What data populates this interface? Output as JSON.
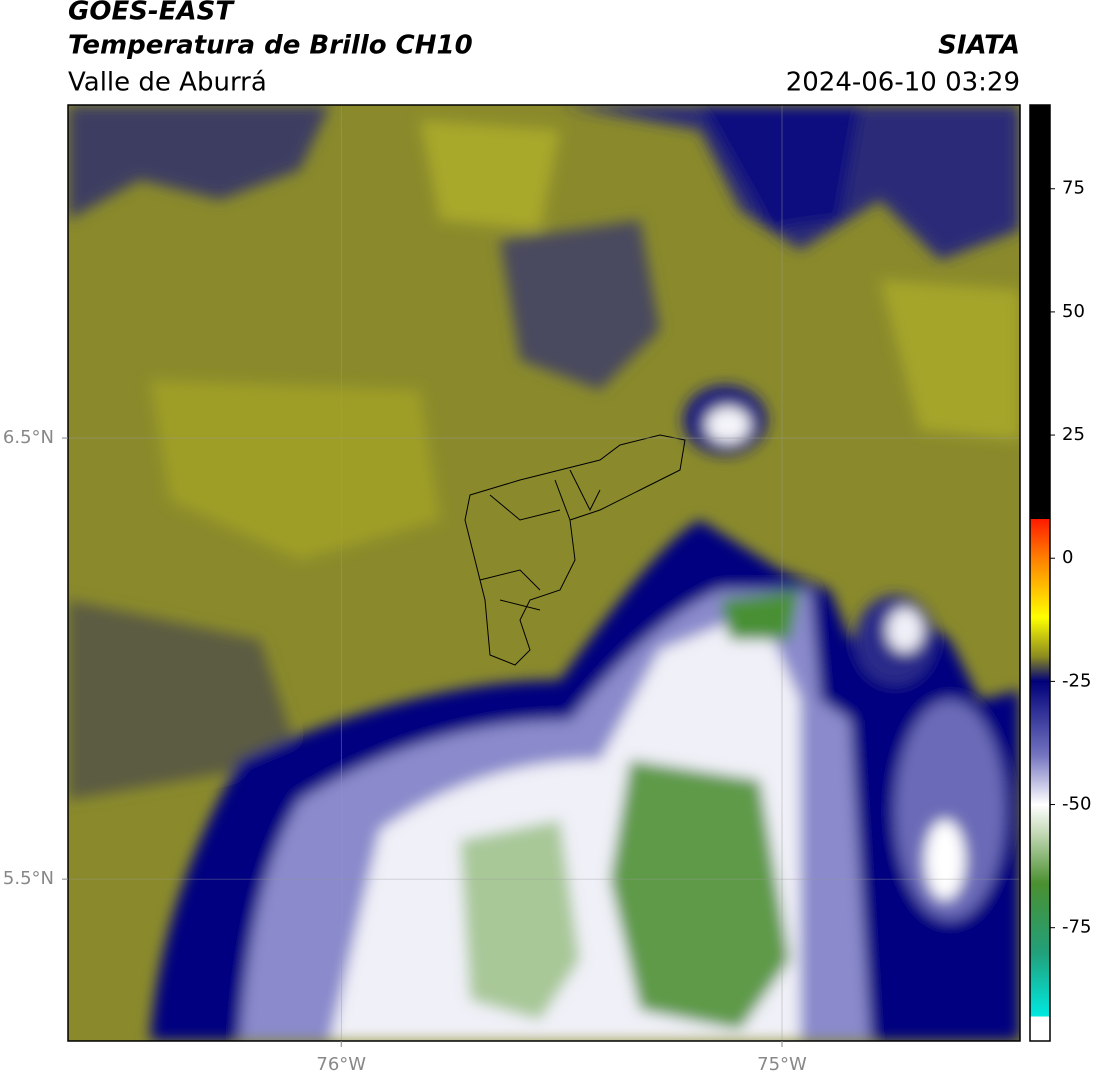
{
  "header": {
    "title": "GOES-EAST",
    "subtitle": "Temperatura de Brillo CH10",
    "region": "Valle de Aburrá",
    "agency": "SIATA",
    "datetime": "2024-06-10 03:29"
  },
  "map": {
    "xlim": [
      -76.62,
      -74.46
    ],
    "ylim": [
      5.133,
      7.255
    ],
    "xticks": [
      {
        "value": -76,
        "label": "76°W"
      },
      {
        "value": -75,
        "label": "75°W"
      }
    ],
    "yticks": [
      {
        "value": 6.5,
        "label": "6.5°N"
      },
      {
        "value": 5.5,
        "label": "5.5°N"
      }
    ],
    "grid": true
  },
  "colorbar": {
    "lim": [
      -98,
      92
    ],
    "ticks": [
      75,
      50,
      25,
      0,
      -25,
      -50,
      -75
    ],
    "stops": [
      {
        "value": 92,
        "color": "#000000"
      },
      {
        "value": 8,
        "color": "#000000"
      },
      {
        "value": 8,
        "color": "#ff1a00"
      },
      {
        "value": 0,
        "color": "#ff8000"
      },
      {
        "value": -12,
        "color": "#ffff00"
      },
      {
        "value": -20,
        "color": "#8a8a20"
      },
      {
        "value": -25,
        "color": "#00007a"
      },
      {
        "value": -40,
        "color": "#7474c0"
      },
      {
        "value": -50,
        "color": "#ffffff"
      },
      {
        "value": -56,
        "color": "#c2d8b4"
      },
      {
        "value": -66,
        "color": "#4a9030"
      },
      {
        "value": -80,
        "color": "#22a07a"
      },
      {
        "value": -93,
        "color": "#00e8e0"
      },
      {
        "value": -93,
        "color": "#ffffff"
      },
      {
        "value": -98,
        "color": "#ffffff"
      }
    ]
  }
}
